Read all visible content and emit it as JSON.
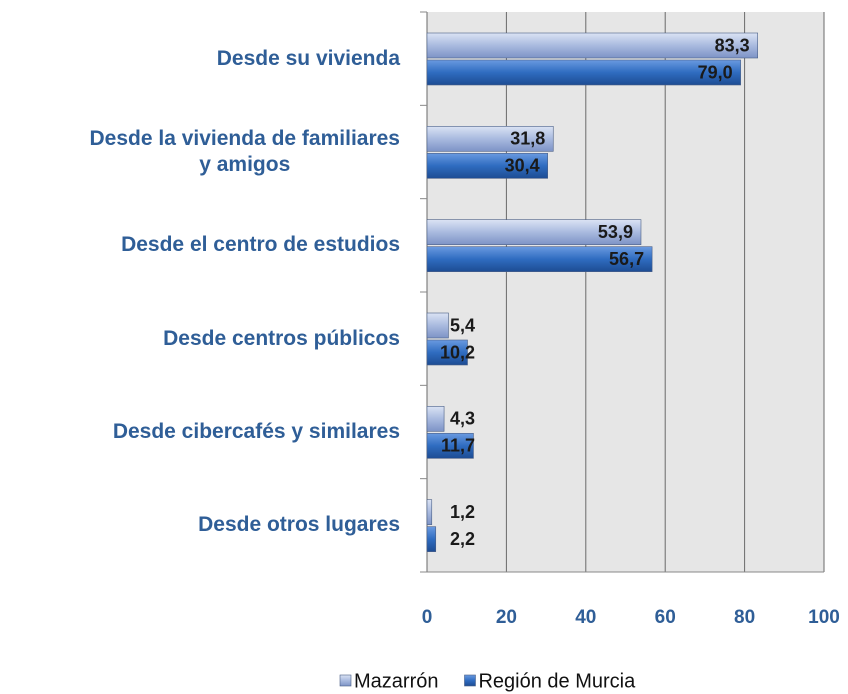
{
  "chart_data": {
    "type": "bar",
    "orientation": "horizontal",
    "categories": [
      "Desde su vivienda",
      "Desde la vivienda de familiares\ny amigos",
      "Desde el centro de estudios",
      "Desde centros públicos",
      "Desde cibercafés y similares",
      "Desde otros lugares"
    ],
    "series": [
      {
        "name": "Mazarrón",
        "color": "#a9badf",
        "values": [
          83.3,
          31.8,
          53.9,
          5.4,
          4.3,
          1.2
        ],
        "value_labels": [
          "83,3",
          "31,8",
          "53,9",
          "5,4",
          "4,3",
          "1,2"
        ]
      },
      {
        "name": "Región de Murcia",
        "color": "#2f6cc0",
        "values": [
          79.0,
          30.4,
          56.7,
          10.2,
          11.7,
          2.2
        ],
        "value_labels": [
          "79,0",
          "30,4",
          "56,7",
          "10,2",
          "11,7",
          "2,2"
        ]
      }
    ],
    "xlim": [
      0,
      100
    ],
    "xticks": [
      0,
      20,
      40,
      60,
      80,
      100
    ],
    "grid": true,
    "legend": "bottom"
  }
}
